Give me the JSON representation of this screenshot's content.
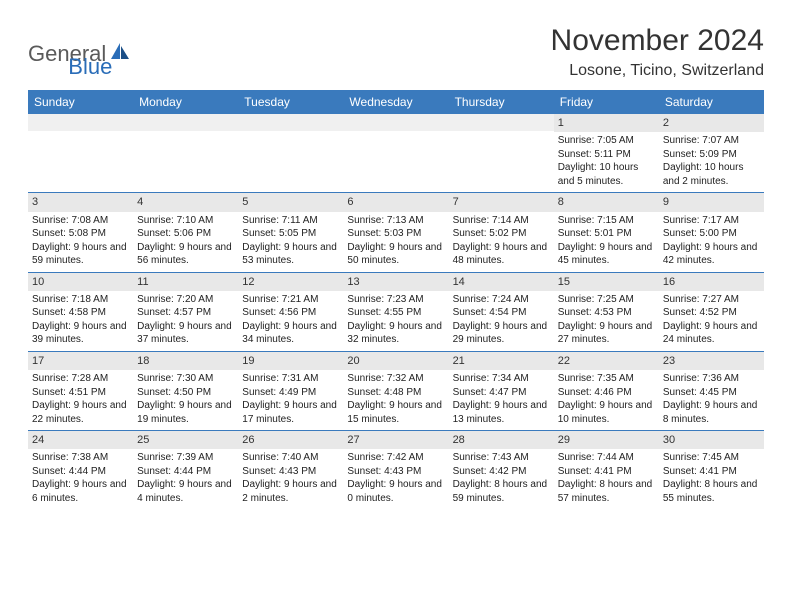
{
  "logo": {
    "general": "General",
    "blue": "Blue"
  },
  "title": "November 2024",
  "location": "Losone, Ticino, Switzerland",
  "day_headers": [
    "Sunday",
    "Monday",
    "Tuesday",
    "Wednesday",
    "Thursday",
    "Friday",
    "Saturday"
  ],
  "colors": {
    "header_bg": "#3a7abd",
    "header_fg": "#ffffff",
    "daynum_bg": "#e8e8e8",
    "row_border": "#3a7abd",
    "logo_gray": "#5a5a5a",
    "logo_blue": "#2a6db8"
  },
  "weeks": [
    [
      {
        "n": "",
        "sunrise": "",
        "sunset": "",
        "daylight": ""
      },
      {
        "n": "",
        "sunrise": "",
        "sunset": "",
        "daylight": ""
      },
      {
        "n": "",
        "sunrise": "",
        "sunset": "",
        "daylight": ""
      },
      {
        "n": "",
        "sunrise": "",
        "sunset": "",
        "daylight": ""
      },
      {
        "n": "",
        "sunrise": "",
        "sunset": "",
        "daylight": ""
      },
      {
        "n": "1",
        "sunrise": "Sunrise: 7:05 AM",
        "sunset": "Sunset: 5:11 PM",
        "daylight": "Daylight: 10 hours and 5 minutes."
      },
      {
        "n": "2",
        "sunrise": "Sunrise: 7:07 AM",
        "sunset": "Sunset: 5:09 PM",
        "daylight": "Daylight: 10 hours and 2 minutes."
      }
    ],
    [
      {
        "n": "3",
        "sunrise": "Sunrise: 7:08 AM",
        "sunset": "Sunset: 5:08 PM",
        "daylight": "Daylight: 9 hours and 59 minutes."
      },
      {
        "n": "4",
        "sunrise": "Sunrise: 7:10 AM",
        "sunset": "Sunset: 5:06 PM",
        "daylight": "Daylight: 9 hours and 56 minutes."
      },
      {
        "n": "5",
        "sunrise": "Sunrise: 7:11 AM",
        "sunset": "Sunset: 5:05 PM",
        "daylight": "Daylight: 9 hours and 53 minutes."
      },
      {
        "n": "6",
        "sunrise": "Sunrise: 7:13 AM",
        "sunset": "Sunset: 5:03 PM",
        "daylight": "Daylight: 9 hours and 50 minutes."
      },
      {
        "n": "7",
        "sunrise": "Sunrise: 7:14 AM",
        "sunset": "Sunset: 5:02 PM",
        "daylight": "Daylight: 9 hours and 48 minutes."
      },
      {
        "n": "8",
        "sunrise": "Sunrise: 7:15 AM",
        "sunset": "Sunset: 5:01 PM",
        "daylight": "Daylight: 9 hours and 45 minutes."
      },
      {
        "n": "9",
        "sunrise": "Sunrise: 7:17 AM",
        "sunset": "Sunset: 5:00 PM",
        "daylight": "Daylight: 9 hours and 42 minutes."
      }
    ],
    [
      {
        "n": "10",
        "sunrise": "Sunrise: 7:18 AM",
        "sunset": "Sunset: 4:58 PM",
        "daylight": "Daylight: 9 hours and 39 minutes."
      },
      {
        "n": "11",
        "sunrise": "Sunrise: 7:20 AM",
        "sunset": "Sunset: 4:57 PM",
        "daylight": "Daylight: 9 hours and 37 minutes."
      },
      {
        "n": "12",
        "sunrise": "Sunrise: 7:21 AM",
        "sunset": "Sunset: 4:56 PM",
        "daylight": "Daylight: 9 hours and 34 minutes."
      },
      {
        "n": "13",
        "sunrise": "Sunrise: 7:23 AM",
        "sunset": "Sunset: 4:55 PM",
        "daylight": "Daylight: 9 hours and 32 minutes."
      },
      {
        "n": "14",
        "sunrise": "Sunrise: 7:24 AM",
        "sunset": "Sunset: 4:54 PM",
        "daylight": "Daylight: 9 hours and 29 minutes."
      },
      {
        "n": "15",
        "sunrise": "Sunrise: 7:25 AM",
        "sunset": "Sunset: 4:53 PM",
        "daylight": "Daylight: 9 hours and 27 minutes."
      },
      {
        "n": "16",
        "sunrise": "Sunrise: 7:27 AM",
        "sunset": "Sunset: 4:52 PM",
        "daylight": "Daylight: 9 hours and 24 minutes."
      }
    ],
    [
      {
        "n": "17",
        "sunrise": "Sunrise: 7:28 AM",
        "sunset": "Sunset: 4:51 PM",
        "daylight": "Daylight: 9 hours and 22 minutes."
      },
      {
        "n": "18",
        "sunrise": "Sunrise: 7:30 AM",
        "sunset": "Sunset: 4:50 PM",
        "daylight": "Daylight: 9 hours and 19 minutes."
      },
      {
        "n": "19",
        "sunrise": "Sunrise: 7:31 AM",
        "sunset": "Sunset: 4:49 PM",
        "daylight": "Daylight: 9 hours and 17 minutes."
      },
      {
        "n": "20",
        "sunrise": "Sunrise: 7:32 AM",
        "sunset": "Sunset: 4:48 PM",
        "daylight": "Daylight: 9 hours and 15 minutes."
      },
      {
        "n": "21",
        "sunrise": "Sunrise: 7:34 AM",
        "sunset": "Sunset: 4:47 PM",
        "daylight": "Daylight: 9 hours and 13 minutes."
      },
      {
        "n": "22",
        "sunrise": "Sunrise: 7:35 AM",
        "sunset": "Sunset: 4:46 PM",
        "daylight": "Daylight: 9 hours and 10 minutes."
      },
      {
        "n": "23",
        "sunrise": "Sunrise: 7:36 AM",
        "sunset": "Sunset: 4:45 PM",
        "daylight": "Daylight: 9 hours and 8 minutes."
      }
    ],
    [
      {
        "n": "24",
        "sunrise": "Sunrise: 7:38 AM",
        "sunset": "Sunset: 4:44 PM",
        "daylight": "Daylight: 9 hours and 6 minutes."
      },
      {
        "n": "25",
        "sunrise": "Sunrise: 7:39 AM",
        "sunset": "Sunset: 4:44 PM",
        "daylight": "Daylight: 9 hours and 4 minutes."
      },
      {
        "n": "26",
        "sunrise": "Sunrise: 7:40 AM",
        "sunset": "Sunset: 4:43 PM",
        "daylight": "Daylight: 9 hours and 2 minutes."
      },
      {
        "n": "27",
        "sunrise": "Sunrise: 7:42 AM",
        "sunset": "Sunset: 4:43 PM",
        "daylight": "Daylight: 9 hours and 0 minutes."
      },
      {
        "n": "28",
        "sunrise": "Sunrise: 7:43 AM",
        "sunset": "Sunset: 4:42 PM",
        "daylight": "Daylight: 8 hours and 59 minutes."
      },
      {
        "n": "29",
        "sunrise": "Sunrise: 7:44 AM",
        "sunset": "Sunset: 4:41 PM",
        "daylight": "Daylight: 8 hours and 57 minutes."
      },
      {
        "n": "30",
        "sunrise": "Sunrise: 7:45 AM",
        "sunset": "Sunset: 4:41 PM",
        "daylight": "Daylight: 8 hours and 55 minutes."
      }
    ]
  ]
}
